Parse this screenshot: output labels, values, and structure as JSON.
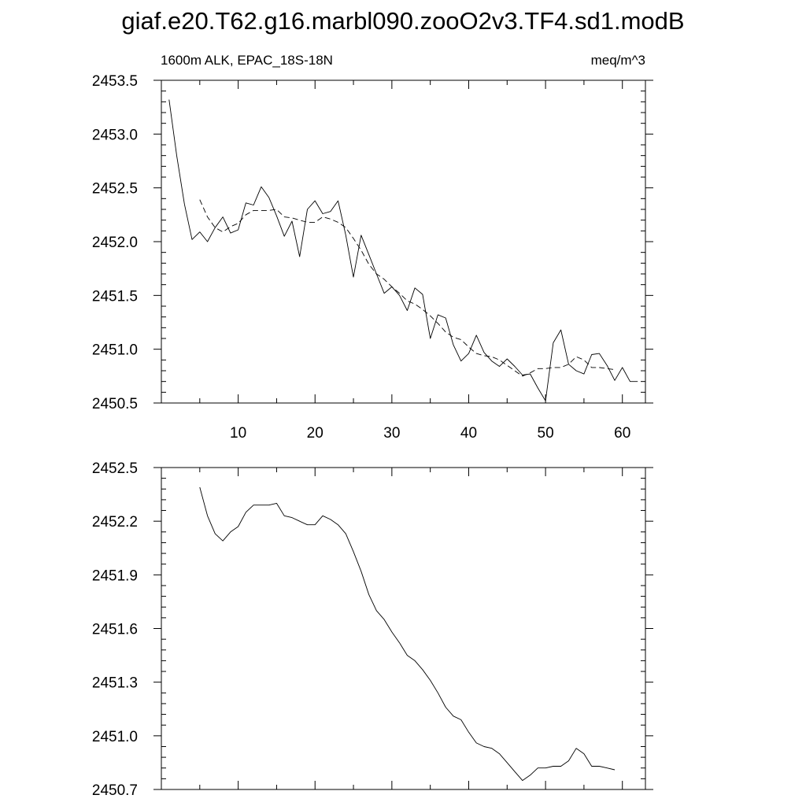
{
  "page_title": "giaf.e20.T62.g16.marbl090.zooO2v3.TF4.sd1.modB",
  "chart_data": [
    {
      "type": "line",
      "title": "",
      "left_subtitle": "1600m ALK, EPAC_18S-18N",
      "right_subtitle": "meq/m^3",
      "xlim": [
        0,
        63
      ],
      "ylim": [
        2450.5,
        2453.5
      ],
      "x_ticks": [
        10,
        20,
        30,
        40,
        50,
        60
      ],
      "y_ticks": [
        2450.5,
        2451.0,
        2451.5,
        2452.0,
        2452.5,
        2453.0,
        2453.5
      ],
      "y_tick_labels": [
        "2450.5",
        "2451.0",
        "2451.5",
        "2452.0",
        "2452.5",
        "2453.0",
        "2453.5"
      ],
      "series": [
        {
          "style": "solid",
          "x": [
            1,
            2,
            3,
            4,
            5,
            6,
            7,
            8,
            9,
            10,
            11,
            12,
            13,
            14,
            15,
            16,
            17,
            18,
            19,
            20,
            21,
            22,
            23,
            24,
            25,
            26,
            27,
            28,
            29,
            30,
            31,
            32,
            33,
            34,
            35,
            36,
            37,
            38,
            39,
            40,
            41,
            42,
            43,
            44,
            45,
            46,
            47,
            48,
            49,
            50,
            51,
            52,
            53,
            54,
            55,
            56,
            57,
            58,
            59,
            60,
            61,
            62
          ],
          "y": [
            2453.32,
            2452.8,
            2452.35,
            2452.02,
            2452.09,
            2452.0,
            2452.13,
            2452.23,
            2452.08,
            2452.11,
            2452.36,
            2452.34,
            2452.51,
            2452.41,
            2452.24,
            2452.05,
            2452.19,
            2451.86,
            2452.3,
            2452.38,
            2452.26,
            2452.28,
            2452.38,
            2452.06,
            2451.67,
            2452.06,
            2451.88,
            2451.7,
            2451.52,
            2451.58,
            2451.5,
            2451.36,
            2451.57,
            2451.51,
            2451.1,
            2451.32,
            2451.29,
            2451.04,
            2450.89,
            2450.96,
            2451.13,
            2450.97,
            2450.89,
            2450.84,
            2450.91,
            2450.84,
            2450.76,
            2450.77,
            2450.64,
            2450.52,
            2451.06,
            2451.18,
            2450.86,
            2450.8,
            2450.77,
            2450.95,
            2450.96,
            2450.85,
            2450.71,
            2450.83,
            2450.7,
            2450.7
          ]
        },
        {
          "style": "dashed",
          "x": [
            5,
            6,
            7,
            8,
            9,
            10,
            11,
            12,
            13,
            14,
            15,
            16,
            17,
            18,
            19,
            20,
            21,
            22,
            23,
            24,
            25,
            26,
            27,
            28,
            29,
            30,
            31,
            32,
            33,
            34,
            35,
            36,
            37,
            38,
            39,
            40,
            41,
            42,
            43,
            44,
            45,
            46,
            47,
            48,
            49,
            50,
            51,
            52,
            53,
            54,
            55,
            56,
            57,
            58,
            59
          ],
          "y": [
            2452.39,
            2452.23,
            2452.13,
            2452.09,
            2452.14,
            2452.17,
            2452.25,
            2452.29,
            2452.29,
            2452.29,
            2452.3,
            2452.23,
            2452.22,
            2452.2,
            2452.18,
            2452.18,
            2452.23,
            2452.21,
            2452.18,
            2452.13,
            2452.03,
            2451.92,
            2451.79,
            2451.7,
            2451.65,
            2451.58,
            2451.52,
            2451.45,
            2451.42,
            2451.37,
            2451.31,
            2451.24,
            2451.16,
            2451.11,
            2451.09,
            2451.02,
            2450.96,
            2450.94,
            2450.93,
            2450.9,
            2450.85,
            2450.8,
            2450.75,
            2450.78,
            2450.82,
            2450.82,
            2450.83,
            2450.83,
            2450.86,
            2450.93,
            2450.9,
            2450.83,
            2450.83,
            2450.82,
            2450.81
          ]
        }
      ]
    },
    {
      "type": "line",
      "title": "",
      "xlim": [
        0,
        63
      ],
      "ylim": [
        2450.7,
        2452.5
      ],
      "x_ticks": [
        10,
        20,
        30,
        40,
        50,
        60
      ],
      "y_ticks": [
        2450.7,
        2451.0,
        2451.3,
        2451.6,
        2451.9,
        2452.2,
        2452.5
      ],
      "y_tick_labels": [
        "2450.7",
        "2451.0",
        "2451.3",
        "2451.6",
        "2451.9",
        "2452.2",
        "2452.5"
      ],
      "series": [
        {
          "style": "solid",
          "x": [
            5,
            6,
            7,
            8,
            9,
            10,
            11,
            12,
            13,
            14,
            15,
            16,
            17,
            18,
            19,
            20,
            21,
            22,
            23,
            24,
            25,
            26,
            27,
            28,
            29,
            30,
            31,
            32,
            33,
            34,
            35,
            36,
            37,
            38,
            39,
            40,
            41,
            42,
            43,
            44,
            45,
            46,
            47,
            48,
            49,
            50,
            51,
            52,
            53,
            54,
            55,
            56,
            57,
            58,
            59
          ],
          "y": [
            2452.39,
            2452.23,
            2452.13,
            2452.09,
            2452.14,
            2452.17,
            2452.25,
            2452.29,
            2452.29,
            2452.29,
            2452.3,
            2452.23,
            2452.22,
            2452.2,
            2452.18,
            2452.18,
            2452.23,
            2452.21,
            2452.18,
            2452.13,
            2452.03,
            2451.92,
            2451.79,
            2451.7,
            2451.65,
            2451.58,
            2451.52,
            2451.45,
            2451.42,
            2451.37,
            2451.31,
            2451.24,
            2451.16,
            2451.11,
            2451.09,
            2451.02,
            2450.96,
            2450.94,
            2450.93,
            2450.9,
            2450.85,
            2450.8,
            2450.75,
            2450.78,
            2450.82,
            2450.82,
            2450.83,
            2450.83,
            2450.86,
            2450.93,
            2450.9,
            2450.83,
            2450.83,
            2450.82,
            2450.81
          ]
        }
      ]
    }
  ]
}
